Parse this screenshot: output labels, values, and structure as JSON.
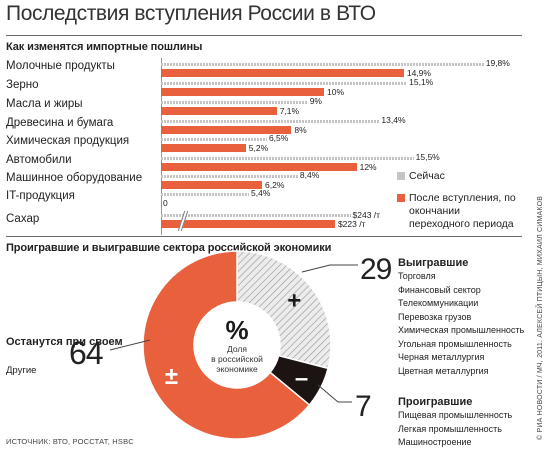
{
  "title": "Последствия вступления России в ВТО",
  "section1_title": "Как изменятся импортные пошлины",
  "section2_title": "Проигравшие и выигравшие сектора российской экономики",
  "chart_data": [
    {
      "type": "bar",
      "title": "Как изменятся импортные пошлины",
      "categories": [
        "Молочные продукты",
        "Зерно",
        "Масла и жиры",
        "Древесина и бумага",
        "Химическая продукция",
        "Автомобили",
        "Машинное оборудование",
        "IT-продукция",
        "Сахар"
      ],
      "series": [
        {
          "name": "Сейчас",
          "color": "#c4c4c4",
          "values": [
            19.8,
            15.1,
            9,
            13.4,
            6.5,
            15.5,
            8.4,
            5.4,
            243
          ],
          "labels": [
            "19,8%",
            "15,1%",
            "9%",
            "13,4%",
            "6,5%",
            "15,5%",
            "8,4%",
            "5,4%",
            "$243 /т"
          ]
        },
        {
          "name": "После вступления, по окончании переходного периода",
          "color": "#e8603c",
          "values": [
            14.9,
            10,
            7.1,
            8,
            5.2,
            12,
            6.2,
            0,
            223
          ],
          "labels": [
            "14,9%",
            "10%",
            "7,1%",
            "8%",
            "5,2%",
            "12%",
            "6,2%",
            "0",
            "$223 /т"
          ]
        }
      ],
      "legend": "right",
      "axis_broken_category": "Сахар"
    },
    {
      "type": "pie",
      "title": "Проигравшие и выигравшие сектора российской экономики",
      "center_symbol": "%",
      "center_label": "Доля в российской экономике",
      "slices": [
        {
          "name": "Выигравшие",
          "value": 29,
          "symbol": "+",
          "color": "#d8d8d8"
        },
        {
          "name": "Проигравшие",
          "value": 7,
          "symbol": "–",
          "color": "#1c1412"
        },
        {
          "name": "Останутся при своем",
          "value": 64,
          "symbol": "±",
          "color": "#e8603c"
        }
      ]
    }
  ],
  "groups": {
    "winners": {
      "value": "29",
      "title": "Выигравшие",
      "items": [
        "Торговля",
        "Финансовый сектор",
        "Телекоммуникации",
        "Перевозка грузов",
        "Химическая промышленность",
        "Угольная промышленность",
        "Черная металлургия",
        "Цветная металлургия"
      ]
    },
    "losers": {
      "value": "7",
      "title": "Проигравшие",
      "items": [
        "Пищевая промышленность",
        "Легкая промышленность",
        "Машиностроение"
      ]
    },
    "neutral": {
      "value": "64",
      "title": "Останутся при своем",
      "subtitle": "Другие"
    }
  },
  "center": {
    "symbol": "%",
    "label": "Доля в российской экономике"
  },
  "symbols": {
    "plus": "+",
    "minus": "–",
    "plusminus": "±"
  },
  "sources": "ИСТОЧНИК: ВТО, РОССТАТ, HSBC",
  "credit": "© РИА НОВОСТИ / МЧ, 2011. АЛЕКСЕЙ ПТИЦЫН, МИХАИЛ СИМАКОВ"
}
